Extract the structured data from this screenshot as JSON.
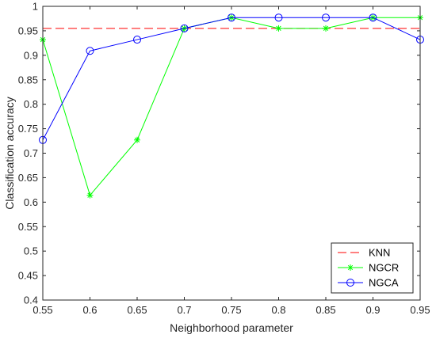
{
  "chart_data": {
    "type": "line",
    "xlabel": "Neighborhood parameter",
    "ylabel": "Classification accuracy",
    "xlim": [
      0.55,
      0.95
    ],
    "ylim": [
      0.4,
      1.0
    ],
    "x_ticks": [
      "0.55",
      "0.6",
      "0.65",
      "0.7",
      "0.75",
      "0.8",
      "0.85",
      "0.9",
      "0.95"
    ],
    "y_ticks": [
      "0.4",
      "0.45",
      "0.5",
      "0.55",
      "0.6",
      "0.65",
      "0.7",
      "0.75",
      "0.8",
      "0.85",
      "0.9",
      "0.95",
      "1"
    ],
    "grid": false,
    "legend_position": "bottom-right",
    "x": [
      0.55,
      0.6,
      0.65,
      0.7,
      0.75,
      0.8,
      0.85,
      0.9,
      0.95
    ],
    "series": [
      {
        "name": "KNN",
        "color": "#ff0000",
        "style": "dashed",
        "marker": "none",
        "values": [
          0.955,
          0.955,
          0.955,
          0.955,
          0.955,
          0.955,
          0.955,
          0.955,
          0.955
        ]
      },
      {
        "name": "NGCR",
        "color": "#00ff00",
        "style": "solid",
        "marker": "asterisk",
        "values": [
          0.932,
          0.614,
          0.727,
          0.955,
          0.977,
          0.955,
          0.955,
          0.977,
          0.977
        ]
      },
      {
        "name": "NGCA",
        "color": "#0000ff",
        "style": "solid",
        "marker": "circle",
        "values": [
          0.727,
          0.909,
          0.932,
          0.955,
          0.977,
          0.977,
          0.977,
          0.977,
          0.932
        ]
      }
    ]
  }
}
